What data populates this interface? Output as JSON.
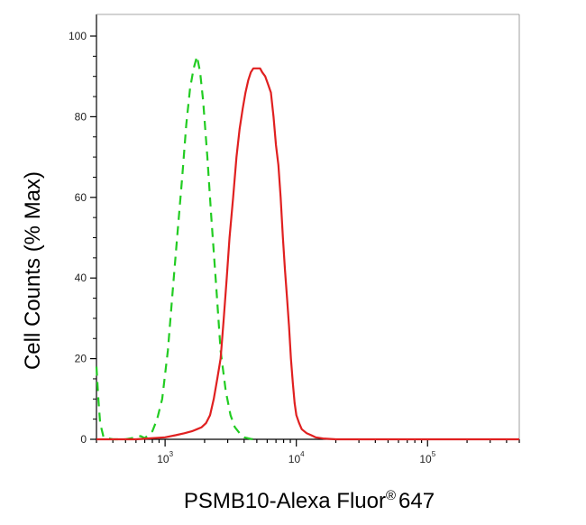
{
  "chart_data": {
    "type": "line",
    "xlabel": "PSMB10-Alexa Fluor",
    "xlabel_mark": "®",
    "xlabel_suffix": "647",
    "ylabel": "Cell Counts (% Max)",
    "x_scale": "log",
    "xlim": [
      300,
      500000
    ],
    "ylim": [
      0,
      100
    ],
    "grid": false,
    "y_ticks": [
      0,
      20,
      40,
      60,
      80,
      100
    ],
    "x_ticks": [
      {
        "value": 1000,
        "base": "10",
        "exp": "3"
      },
      {
        "value": 10000,
        "base": "10",
        "exp": "4"
      },
      {
        "value": 100000,
        "base": "10",
        "exp": "5"
      }
    ],
    "series": [
      {
        "color": "#22cc22",
        "style": "dashed",
        "points": [
          [
            300,
            18
          ],
          [
            310,
            10
          ],
          [
            320,
            4
          ],
          [
            340,
            0.5
          ],
          [
            400,
            0
          ],
          [
            500,
            0
          ],
          [
            600,
            0.5
          ],
          [
            650,
            0.8
          ],
          [
            700,
            0.3
          ],
          [
            800,
            2
          ],
          [
            870,
            5
          ],
          [
            950,
            10
          ],
          [
            1050,
            22
          ],
          [
            1150,
            38
          ],
          [
            1250,
            52
          ],
          [
            1350,
            65
          ],
          [
            1450,
            78
          ],
          [
            1550,
            87
          ],
          [
            1650,
            92
          ],
          [
            1750,
            95
          ],
          [
            1850,
            91
          ],
          [
            1950,
            84
          ],
          [
            2100,
            70
          ],
          [
            2250,
            55
          ],
          [
            2450,
            38
          ],
          [
            2650,
            22
          ],
          [
            2900,
            12
          ],
          [
            3150,
            6
          ],
          [
            3400,
            3
          ],
          [
            3700,
            1.5
          ],
          [
            4000,
            0.5
          ],
          [
            4500,
            0.1
          ],
          [
            5000,
            0
          ]
        ]
      },
      {
        "color": "#e02020",
        "style": "solid",
        "points": [
          [
            300,
            0
          ],
          [
            600,
            0
          ],
          [
            800,
            0.3
          ],
          [
            1000,
            0.5
          ],
          [
            1200,
            1
          ],
          [
            1400,
            1.5
          ],
          [
            1600,
            2
          ],
          [
            1750,
            2.5
          ],
          [
            1900,
            3
          ],
          [
            2050,
            4
          ],
          [
            2200,
            6
          ],
          [
            2350,
            10
          ],
          [
            2500,
            15
          ],
          [
            2650,
            20
          ],
          [
            2800,
            30
          ],
          [
            2950,
            40
          ],
          [
            3100,
            50
          ],
          [
            3300,
            60
          ],
          [
            3500,
            70
          ],
          [
            3700,
            77
          ],
          [
            3900,
            82
          ],
          [
            4100,
            86
          ],
          [
            4300,
            89
          ],
          [
            4500,
            91
          ],
          [
            4700,
            92
          ],
          [
            4900,
            92
          ],
          [
            5100,
            92
          ],
          [
            5300,
            92
          ],
          [
            5500,
            91
          ],
          [
            5800,
            90
          ],
          [
            6100,
            88
          ],
          [
            6400,
            86
          ],
          [
            6700,
            80
          ],
          [
            7000,
            73
          ],
          [
            7300,
            68
          ],
          [
            7600,
            60
          ],
          [
            7900,
            50
          ],
          [
            8200,
            42
          ],
          [
            8500,
            35
          ],
          [
            8800,
            28
          ],
          [
            9100,
            20
          ],
          [
            9400,
            14
          ],
          [
            9700,
            9
          ],
          [
            10000,
            6
          ],
          [
            10500,
            4
          ],
          [
            11000,
            2.5
          ],
          [
            12000,
            1.5
          ],
          [
            13000,
            1
          ],
          [
            14000,
            0.5
          ],
          [
            16000,
            0.2
          ],
          [
            20000,
            0
          ],
          [
            500000,
            0
          ]
        ]
      }
    ]
  }
}
